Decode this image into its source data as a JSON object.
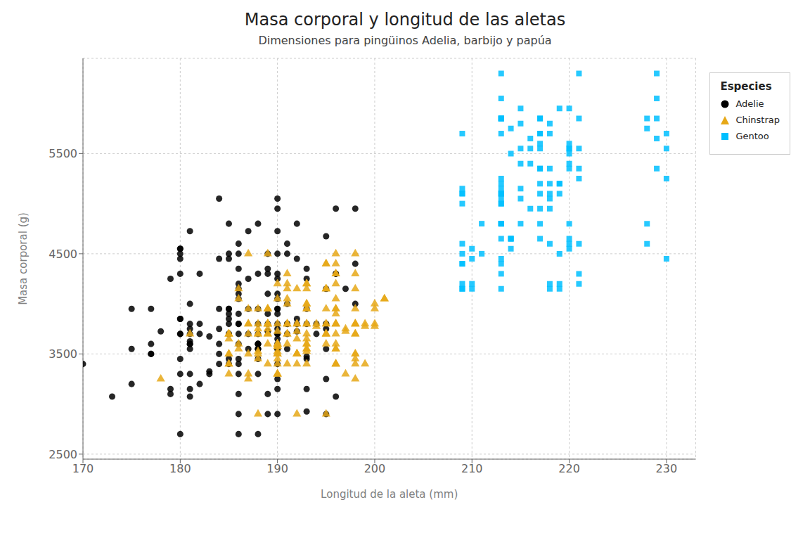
{
  "chart_data": {
    "type": "scatter",
    "title": "Masa corporal y longitud de las aletas",
    "subtitle": "Dimensiones para pingüinos Adelia, barbijo y papúa",
    "xlabel": "Longitud de la aleta (mm)",
    "ylabel": "Masa corporal (g)",
    "xlim": [
      170,
      233
    ],
    "ylim": [
      2450,
      6450
    ],
    "xticks": [
      170,
      180,
      190,
      200,
      210,
      220,
      230
    ],
    "yticks": [
      2500,
      3500,
      4500,
      5500
    ],
    "grid": true,
    "legend": "right",
    "legend_title": "Especies",
    "series": [
      {
        "name": "Adelie",
        "color": "#000000",
        "marker": "circle",
        "x": [
          181,
          186,
          195,
          193,
          190,
          181,
          195,
          193,
          190,
          186,
          180,
          182,
          191,
          198,
          185,
          180,
          180,
          183,
          186,
          170,
          181,
          188,
          175,
          181,
          193,
          187,
          175,
          179,
          190,
          181,
          188,
          182,
          185,
          177,
          182,
          180,
          180,
          177,
          184,
          184,
          195,
          196,
          190,
          180,
          181,
          180,
          186,
          189,
          195,
          189,
          178,
          187,
          181,
          187,
          193,
          188,
          190,
          190,
          196,
          179,
          181,
          185,
          180,
          188,
          180,
          185,
          185,
          185,
          185,
          195,
          188,
          189,
          186,
          186,
          186,
          181,
          180,
          177,
          177,
          188,
          182,
          185,
          185,
          180,
          196,
          190,
          193,
          186,
          186,
          192,
          181,
          173,
          179,
          175,
          184,
          181,
          198,
          189,
          190,
          189,
          180,
          185,
          188,
          189,
          190,
          194,
          191,
          198,
          194,
          191,
          190,
          191,
          195,
          193,
          188,
          188,
          184,
          184,
          189,
          188,
          186,
          189,
          190,
          189,
          190,
          196,
          193,
          188,
          195,
          193,
          190,
          186,
          188,
          186,
          192,
          192,
          186,
          186,
          185,
          195,
          190,
          181,
          191,
          190,
          184,
          186,
          197,
          187,
          191,
          184,
          183,
          192,
          186,
          190,
          190,
          183,
          187,
          188,
          190,
          190,
          190,
          190,
          192,
          191,
          185,
          186,
          188,
          190,
          190,
          186
        ],
        "values": [
          3750,
          3800,
          3250,
          3450,
          3650,
          3625,
          4675,
          3475,
          4250,
          3300,
          3700,
          3200,
          3800,
          4400,
          3700,
          3450,
          4500,
          3325,
          4200,
          3400,
          3600,
          3800,
          3950,
          3800,
          3800,
          3550,
          3200,
          3150,
          3950,
          3550,
          3300,
          3700,
          3450,
          3600,
          3800,
          3700,
          4550,
          3500,
          3950,
          3600,
          3550,
          4300,
          3400,
          4450,
          3300,
          4300,
          3700,
          4350,
          2900,
          4100,
          3725,
          4725,
          3075,
          4250,
          2925,
          3550,
          3750,
          3150,
          4950,
          3100,
          3600,
          3900,
          3850,
          4800,
          2700,
          4500,
          3950,
          3850,
          3800,
          3800,
          3950,
          3800,
          3450,
          3600,
          3800,
          3700,
          4550,
          3500,
          3950,
          3600,
          4300,
          3400,
          4450,
          3300,
          4300,
          3700,
          4350,
          2900,
          4100,
          3725,
          4725,
          3075,
          4250,
          3550,
          3750,
          3150,
          4950,
          3100,
          3600,
          3900,
          3850,
          4800,
          2700,
          4500,
          3950,
          3800,
          3800,
          4000,
          3700,
          4500,
          5050,
          4600,
          4150,
          3950,
          3550,
          4300,
          3400,
          4450,
          4300,
          3700,
          4350,
          2900,
          4100,
          3725,
          4725,
          3075,
          4250,
          3550,
          3750,
          3150,
          4950,
          3100,
          3600,
          3900,
          3850,
          4800,
          2700,
          4500,
          3950,
          3800,
          3800,
          4000,
          3700,
          4500,
          5050,
          4600,
          4150,
          3950,
          3550,
          3500,
          3675,
          4450,
          3400,
          4300,
          3250,
          3300,
          3700,
          3450,
          4050,
          2900,
          3700,
          3550,
          3800,
          4000,
          3700,
          4050,
          3600,
          3900,
          3550,
          4150
        ]
      },
      {
        "name": "Chinstrap",
        "color": "#E6A817",
        "marker": "triangle",
        "x": [
          192,
          196,
          193,
          188,
          197,
          198,
          178,
          197,
          195,
          198,
          193,
          194,
          185,
          201,
          190,
          201,
          197,
          181,
          190,
          195,
          191,
          193,
          188,
          193,
          190,
          192,
          191,
          198,
          193,
          193,
          192,
          193,
          192,
          194,
          185,
          189,
          186,
          196,
          187,
          193,
          198,
          190,
          195,
          191,
          196,
          200,
          185,
          190,
          190,
          196,
          187,
          188,
          198,
          195,
          196,
          199,
          195,
          191,
          190,
          186,
          185,
          189,
          188,
          196,
          190,
          196,
          192,
          191,
          190,
          193,
          189,
          198,
          189,
          193,
          192,
          193,
          192,
          187,
          198,
          189,
          195,
          191,
          196,
          200,
          185,
          190,
          190,
          196,
          187,
          188,
          198,
          195,
          196,
          199,
          195,
          191,
          190,
          186,
          185,
          189,
          188,
          196,
          190,
          196,
          192,
          191,
          190,
          193,
          189,
          198,
          189,
          193,
          192,
          193,
          192,
          187,
          198,
          189,
          195,
          191,
          196,
          200,
          185,
          190,
          190,
          196,
          187,
          188,
          198,
          195,
          196,
          199,
          195,
          191,
          190,
          186,
          185,
          189,
          188,
          196,
          190,
          196,
          192,
          191,
          190,
          193,
          189,
          198,
          189,
          193,
          192,
          193,
          192,
          187,
          198,
          189,
          195,
          191,
          196,
          200,
          185,
          190,
          190,
          196,
          187,
          188,
          198,
          195
        ],
        "values": [
          3500,
          3900,
          3650,
          3525,
          3725,
          3950,
          3250,
          3750,
          4150,
          3700,
          3800,
          3775,
          3700,
          4050,
          3575,
          4050,
          3300,
          3700,
          3450,
          4400,
          3600,
          3400,
          2900,
          3800,
          3300,
          4150,
          3400,
          3800,
          3700,
          4200,
          3500,
          3550,
          3500,
          3800,
          3500,
          3950,
          3600,
          4300,
          3800,
          4000,
          3400,
          3600,
          3800,
          3700,
          4500,
          3950,
          3650,
          3525,
          3725,
          3950,
          3250,
          3750,
          4150,
          3700,
          3800,
          3775,
          3700,
          4050,
          3575,
          4050,
          3300,
          3700,
          3450,
          4400,
          3600,
          3400,
          2900,
          3800,
          3300,
          4150,
          3400,
          3800,
          3700,
          4200,
          3500,
          3550,
          3500,
          3800,
          3500,
          3950,
          3600,
          4300,
          3800,
          4000,
          3400,
          3600,
          3800,
          3700,
          4500,
          3950,
          3800,
          4150,
          3400,
          3800,
          3700,
          4200,
          3500,
          3550,
          3500,
          3800,
          3500,
          3950,
          3600,
          4300,
          3800,
          4000,
          3400,
          3600,
          3800,
          3700,
          4500,
          3950,
          3650,
          3525,
          3725,
          3950,
          3250,
          3750,
          4150,
          3700,
          3800,
          3775,
          3700,
          4050,
          3575,
          4050,
          3300,
          3700,
          3450,
          4400,
          3600,
          3400,
          2900,
          3800,
          3300,
          4150,
          3400,
          3800,
          3700,
          4200,
          3500,
          3550,
          3500,
          3800,
          3500,
          3950,
          3600,
          4300,
          3800,
          4000,
          3400,
          3600,
          3800,
          3700,
          4500,
          3950,
          3800,
          4150,
          3400,
          3800,
          3700,
          4200,
          3500,
          3550,
          3500,
          3800,
          3500,
          3950
        ]
      },
      {
        "name": "Gentoo",
        "color": "#00BFFF",
        "marker": "square",
        "x": [
          211,
          230,
          210,
          218,
          215,
          210,
          211,
          219,
          209,
          215,
          214,
          216,
          214,
          213,
          210,
          217,
          210,
          221,
          218,
          209,
          229,
          213,
          230,
          217,
          216,
          220,
          213,
          219,
          209,
          213,
          217,
          220,
          214,
          228,
          218,
          213,
          209,
          213,
          215,
          220,
          213,
          221,
          217,
          218,
          229,
          221,
          209,
          213,
          230,
          217,
          216,
          220,
          213,
          219,
          209,
          213,
          217,
          220,
          214,
          228,
          218,
          213,
          209,
          213,
          215,
          220,
          213,
          221,
          217,
          218,
          229,
          221,
          209,
          213,
          219,
          209,
          213,
          217,
          220,
          214,
          228,
          218,
          213,
          209,
          213,
          215,
          220,
          213,
          221,
          217,
          218,
          229,
          221,
          215,
          219,
          213,
          217,
          219,
          213,
          230,
          217,
          216,
          220,
          213,
          219,
          209,
          213,
          217,
          220,
          214,
          228,
          218,
          213,
          209,
          213,
          215,
          220,
          213,
          221,
          217,
          218,
          229
        ],
        "values": [
          4500,
          5700,
          4450,
          5700,
          5400,
          4550,
          4800,
          5200,
          4400,
          5150,
          4650,
          5550,
          4650,
          5850,
          4200,
          5850,
          4150,
          6300,
          5800,
          4600,
          6050,
          4300,
          5550,
          5100,
          5650,
          5550,
          5100,
          5100,
          4200,
          5100,
          5200,
          5600,
          5500,
          5750,
          4600,
          5050,
          4150,
          5000,
          4800,
          5950,
          4800,
          5250,
          5350,
          4950,
          5350,
          5850,
          4500,
          5700,
          4450,
          5700,
          5400,
          4550,
          4800,
          5200,
          4400,
          5150,
          4650,
          5550,
          4650,
          5850,
          4200,
          5850,
          4150,
          6300,
          5800,
          4600,
          6050,
          4300,
          5550,
          5100,
          5650,
          5550,
          5100,
          5100,
          4200,
          5100,
          5200,
          5600,
          5500,
          5750,
          4600,
          5050,
          4150,
          5000,
          4800,
          5950,
          4800,
          5250,
          5350,
          4950,
          5350,
          5850,
          4600,
          5050,
          4150,
          5000,
          4800,
          5950,
          4800,
          5250,
          5350,
          4950,
          5350,
          5850,
          4500,
          5700,
          4450,
          5700,
          5400,
          4550,
          4800,
          5200,
          4400,
          5150,
          4650,
          5550,
          4650,
          5850,
          4200,
          5850,
          4150,
          6300
        ]
      }
    ]
  }
}
